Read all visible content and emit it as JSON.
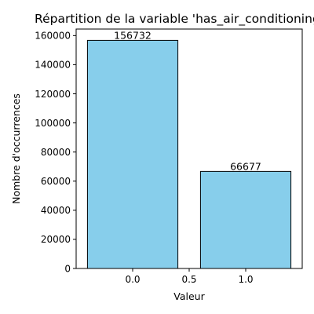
{
  "chart_data": {
    "type": "bar",
    "title": "Répartition de la variable 'has_air_conditioning'",
    "xlabel": "Valeur",
    "ylabel": "Nombre d'occurrences",
    "x": [
      0,
      1
    ],
    "values": [
      156732,
      66677
    ],
    "data_labels": [
      "156732",
      "66677"
    ],
    "xlim": [
      -0.5,
      1.5
    ],
    "ylim": [
      0,
      164500
    ],
    "xticks": [
      0.0,
      0.5,
      1.0
    ],
    "xtick_labels": [
      "0.0",
      "0.5",
      "1.0"
    ],
    "yticks": [
      0,
      20000,
      40000,
      60000,
      80000,
      100000,
      120000,
      140000,
      160000
    ],
    "ytick_labels": [
      "0",
      "20000",
      "40000",
      "60000",
      "80000",
      "100000",
      "120000",
      "140000",
      "160000"
    ],
    "bar_width": 0.8,
    "bar_color": "#87ceeb",
    "edge_color": "#000000",
    "grid": false,
    "legend": "none"
  }
}
